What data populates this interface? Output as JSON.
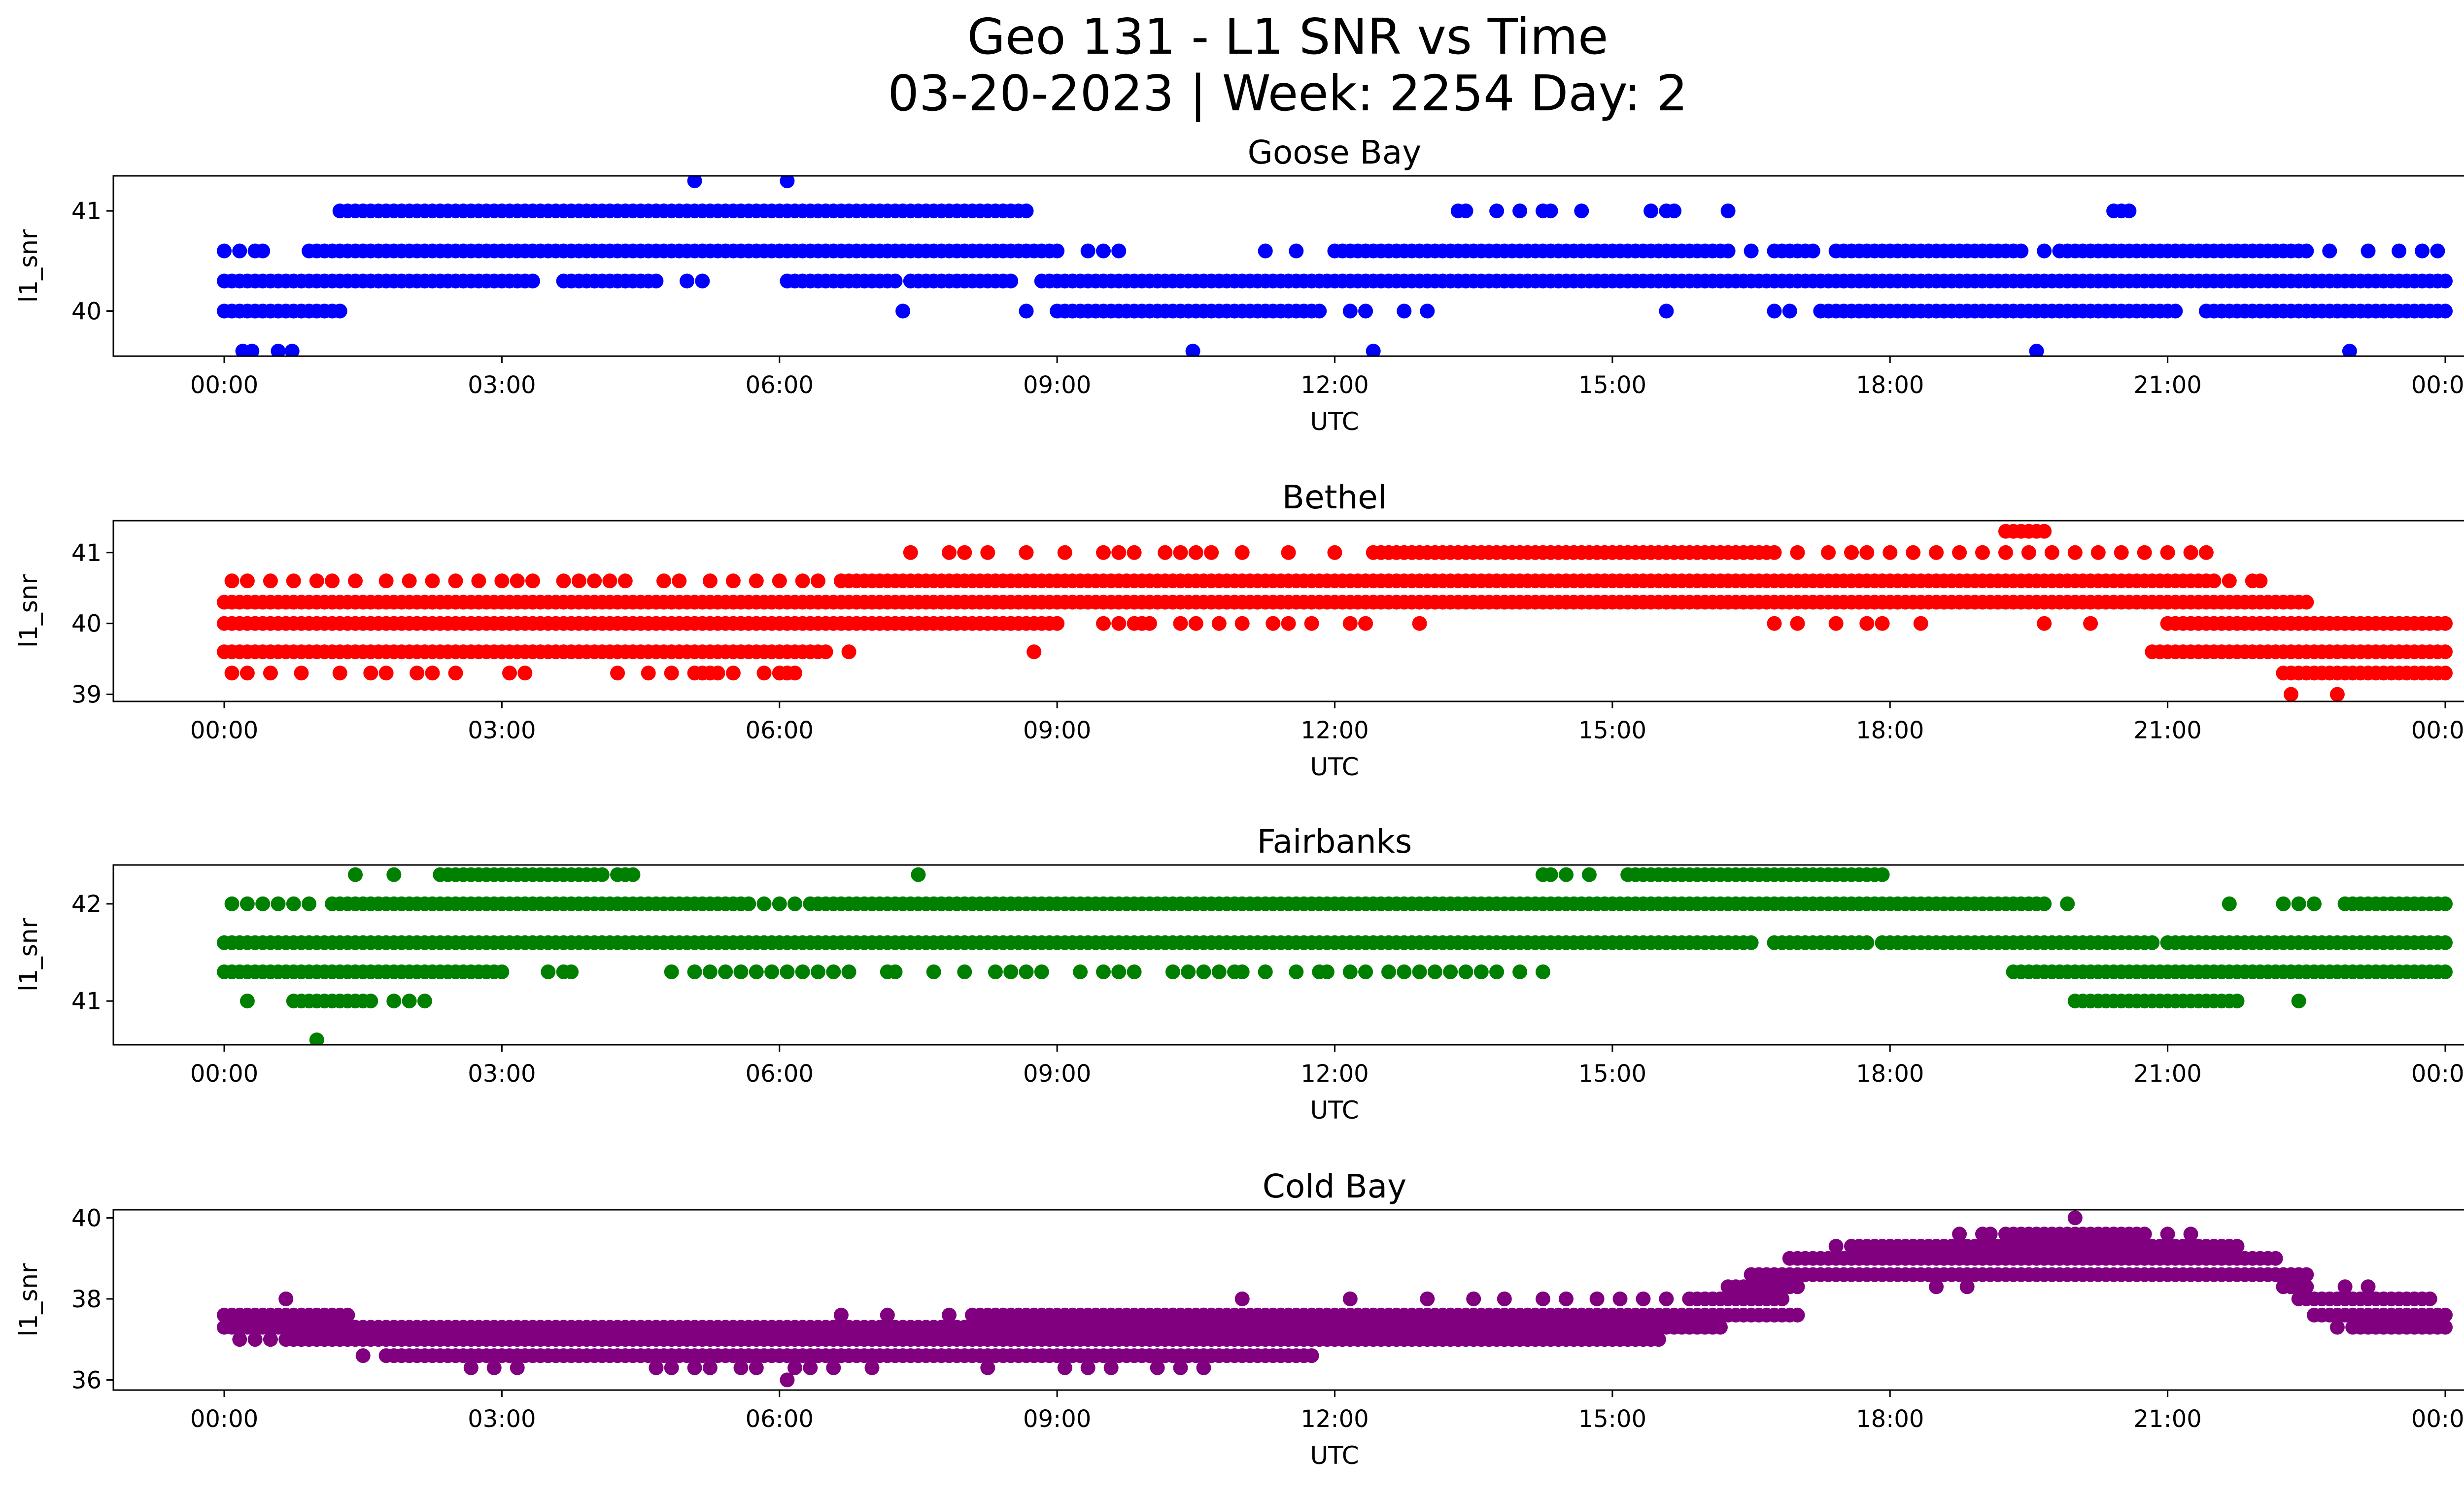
{
  "figure": {
    "title_line1": "Geo 131 - L1 SNR vs Time",
    "title_line2": "03-20-2023 | Week: 2254 Day: 2"
  },
  "chart_data": [
    {
      "type": "scatter",
      "title": "Goose Bay",
      "xlabel": "UTC",
      "ylabel": "l1_snr",
      "color": "#0000ff",
      "xlim": [
        "00:00",
        "24:00"
      ],
      "ylim": [
        39.55,
        41.35
      ],
      "xticks": [
        "00:00",
        "03:00",
        "06:00",
        "09:00",
        "12:00",
        "15:00",
        "18:00",
        "21:00",
        "00:00"
      ],
      "yticks": [
        40,
        41
      ],
      "levels": [
        {
          "y": 39.6,
          "x": [
            "00:12",
            "00:18",
            "00:35",
            "00:44",
            "10:28",
            "12:25",
            "19:35",
            "22:58"
          ]
        },
        {
          "y": 40.0,
          "ranges": [
            [
              "00:00",
              "01:15"
            ],
            [
              "09:00",
              "11:50"
            ],
            [
              "17:15",
              "21:05"
            ],
            [
              "21:25",
              "24:00"
            ]
          ],
          "x": [
            "07:20",
            "08:40",
            "12:10",
            "12:20",
            "12:45",
            "13:00",
            "15:35",
            "16:45",
            "16:55"
          ]
        },
        {
          "y": 40.3,
          "ranges": [
            [
              "00:00",
              "03:20"
            ],
            [
              "03:40",
              "04:40"
            ],
            [
              "06:05",
              "07:15"
            ],
            [
              "07:30",
              "08:30"
            ],
            [
              "08:50",
              "24:00"
            ]
          ],
          "x": [
            "05:00",
            "05:10",
            "07:25"
          ]
        },
        {
          "y": 40.6,
          "ranges": [
            [
              "00:55",
              "09:00"
            ],
            [
              "12:00",
              "16:15"
            ],
            [
              "16:45",
              "17:10"
            ],
            [
              "17:25",
              "19:25"
            ],
            [
              "19:50",
              "22:30"
            ]
          ],
          "x": [
            "00:00",
            "00:10",
            "00:20",
            "00:25",
            "09:20",
            "09:30",
            "09:40",
            "11:15",
            "11:35",
            "16:30",
            "19:40",
            "22:45",
            "23:10",
            "23:30",
            "23:45",
            "23:55"
          ]
        },
        {
          "y": 41.0,
          "ranges": [
            [
              "01:15",
              "08:40"
            ]
          ],
          "x": [
            "13:20",
            "13:25",
            "13:45",
            "14:00",
            "14:15",
            "14:20",
            "14:40",
            "15:25",
            "15:35",
            "15:40",
            "16:15",
            "20:25",
            "20:30",
            "20:35"
          ]
        },
        {
          "y": 41.3,
          "x": [
            "05:05",
            "06:05"
          ]
        }
      ]
    },
    {
      "type": "scatter",
      "title": "Bethel",
      "xlabel": "UTC",
      "ylabel": "l1_snr",
      "color": "#ff0000",
      "xlim": [
        "00:00",
        "24:00"
      ],
      "ylim": [
        38.9,
        41.45
      ],
      "xticks": [
        "00:00",
        "03:00",
        "06:00",
        "09:00",
        "12:00",
        "15:00",
        "18:00",
        "21:00",
        "00:00"
      ],
      "yticks": [
        39,
        40,
        41
      ],
      "levels": [
        {
          "y": 39.0,
          "x": [
            "22:20",
            "22:50"
          ]
        },
        {
          "y": 39.3,
          "ranges": [
            [
              "22:15",
              "24:00"
            ]
          ],
          "x": [
            "00:05",
            "00:15",
            "00:30",
            "00:50",
            "01:15",
            "01:35",
            "01:45",
            "02:05",
            "02:15",
            "02:30",
            "03:05",
            "03:15",
            "04:15",
            "04:35",
            "04:50",
            "05:05",
            "05:10",
            "05:15",
            "05:20",
            "05:30",
            "05:50",
            "06:00",
            "06:05",
            "06:10"
          ]
        },
        {
          "y": 39.6,
          "ranges": [
            [
              "00:00",
              "06:30"
            ],
            [
              "20:50",
              "24:00"
            ]
          ],
          "x": [
            "06:45",
            "08:45"
          ]
        },
        {
          "y": 40.0,
          "ranges": [
            [
              "00:00",
              "09:00"
            ],
            [
              "21:00",
              "24:00"
            ]
          ],
          "x": [
            "09:30",
            "09:40",
            "09:50",
            "09:55",
            "10:00",
            "10:20",
            "10:30",
            "10:45",
            "11:00",
            "11:20",
            "11:30",
            "11:45",
            "12:10",
            "12:20",
            "12:55",
            "16:45",
            "17:00",
            "17:25",
            "17:45",
            "17:55",
            "18:20",
            "19:40",
            "20:10"
          ]
        },
        {
          "y": 40.3,
          "ranges": [
            [
              "00:00",
              "22:30"
            ]
          ],
          "x": []
        },
        {
          "y": 40.6,
          "ranges": [
            [
              "06:40",
              "21:30"
            ]
          ],
          "x": [
            "00:05",
            "00:15",
            "00:30",
            "00:45",
            "01:00",
            "01:10",
            "01:25",
            "01:45",
            "02:00",
            "02:15",
            "02:30",
            "02:45",
            "03:00",
            "03:10",
            "03:20",
            "03:40",
            "03:50",
            "04:00",
            "04:10",
            "04:20",
            "04:45",
            "04:55",
            "05:15",
            "05:30",
            "05:45",
            "06:00",
            "06:15",
            "06:25",
            "21:40",
            "21:55",
            "22:00"
          ]
        },
        {
          "y": 41.0,
          "ranges": [
            [
              "12:25",
              "16:45"
            ]
          ],
          "x": [
            "07:25",
            "07:50",
            "08:00",
            "08:15",
            "08:40",
            "09:05",
            "09:30",
            "09:40",
            "09:50",
            "10:10",
            "10:20",
            "10:30",
            "10:40",
            "11:00",
            "11:30",
            "12:00",
            "17:00",
            "17:20",
            "17:35",
            "17:45",
            "18:00",
            "18:15",
            "18:30",
            "18:45",
            "19:00",
            "19:15",
            "19:30",
            "19:45",
            "20:00",
            "20:15",
            "20:30",
            "20:45",
            "21:00",
            "21:15",
            "21:25"
          ]
        },
        {
          "y": 41.3,
          "x": [
            "19:15",
            "19:20",
            "19:25",
            "19:30",
            "19:35",
            "19:40"
          ]
        }
      ]
    },
    {
      "type": "scatter",
      "title": "Fairbanks",
      "xlabel": "UTC",
      "ylabel": "l1_snr",
      "color": "#008000",
      "xlim": [
        "00:00",
        "24:00"
      ],
      "ylim": [
        40.55,
        42.4
      ],
      "xticks": [
        "00:00",
        "03:00",
        "06:00",
        "09:00",
        "12:00",
        "15:00",
        "18:00",
        "21:00",
        "00:00"
      ],
      "yticks": [
        41,
        42
      ],
      "levels": [
        {
          "y": 40.6,
          "x": [
            "01:00"
          ]
        },
        {
          "y": 41.0,
          "ranges": [
            [
              "20:00",
              "21:45"
            ]
          ],
          "x": [
            "00:15",
            "00:45",
            "00:50",
            "00:55",
            "01:00",
            "01:05",
            "01:10",
            "01:15",
            "01:20",
            "01:25",
            "01:30",
            "01:35",
            "01:50",
            "02:00",
            "02:10",
            "22:25"
          ]
        },
        {
          "y": 41.3,
          "ranges": [
            [
              "00:00",
              "03:00"
            ],
            [
              "19:20",
              "24:00"
            ]
          ],
          "x": [
            "03:30",
            "03:40",
            "03:45",
            "04:50",
            "05:05",
            "05:15",
            "05:25",
            "05:35",
            "05:45",
            "05:55",
            "06:05",
            "06:15",
            "06:25",
            "06:35",
            "06:45",
            "07:10",
            "07:15",
            "07:40",
            "08:00",
            "08:20",
            "08:30",
            "08:40",
            "08:50",
            "09:15",
            "09:30",
            "09:40",
            "09:50",
            "10:15",
            "10:25",
            "10:35",
            "10:45",
            "10:55",
            "11:00",
            "11:15",
            "11:35",
            "11:50",
            "11:55",
            "12:10",
            "12:20",
            "12:35",
            "12:45",
            "12:55",
            "13:05",
            "13:15",
            "13:25",
            "13:35",
            "13:45",
            "14:00",
            "14:15"
          ]
        },
        {
          "y": 41.6,
          "ranges": [
            [
              "00:00",
              "16:30"
            ],
            [
              "16:45",
              "17:45"
            ],
            [
              "17:55",
              "20:50"
            ],
            [
              "21:00",
              "24:00"
            ]
          ],
          "x": []
        },
        {
          "y": 42.0,
          "ranges": [
            [
              "01:10",
              "05:40"
            ],
            [
              "06:25",
              "19:40"
            ],
            [
              "22:55",
              "23:35"
            ],
            [
              "23:45",
              "24:00"
            ]
          ],
          "x": [
            "00:05",
            "00:15",
            "00:25",
            "00:35",
            "00:45",
            "00:55",
            "05:50",
            "06:00",
            "06:10",
            "06:20",
            "19:55",
            "21:40",
            "22:15",
            "22:25",
            "22:35",
            "23:40"
          ]
        },
        {
          "y": 42.3,
          "ranges": [
            [
              "02:20",
              "04:05"
            ],
            [
              "15:10",
              "17:55"
            ]
          ],
          "x": [
            "01:25",
            "01:50",
            "04:15",
            "04:20",
            "04:25",
            "07:30",
            "14:15",
            "14:20",
            "14:30",
            "14:45"
          ]
        }
      ]
    },
    {
      "type": "scatter",
      "title": "Cold Bay",
      "xlabel": "UTC",
      "ylabel": "l1_snr",
      "color": "#800080",
      "xlim": [
        "00:00",
        "24:00"
      ],
      "ylim": [
        35.75,
        40.2
      ],
      "xticks": [
        "00:00",
        "03:00",
        "06:00",
        "09:00",
        "12:00",
        "15:00",
        "18:00",
        "21:00",
        "00:00"
      ],
      "yticks": [
        36,
        38,
        40
      ],
      "levels": [
        {
          "y": 36.0,
          "x": [
            "06:05"
          ]
        },
        {
          "y": 36.3,
          "x": [
            "02:40",
            "02:55",
            "03:10",
            "04:40",
            "04:50",
            "05:05",
            "05:15",
            "05:35",
            "05:45",
            "06:10",
            "06:20",
            "06:35",
            "07:00",
            "08:15",
            "09:05",
            "09:20",
            "09:35",
            "10:05",
            "10:20",
            "10:35"
          ]
        },
        {
          "y": 36.6,
          "ranges": [
            [
              "01:45",
              "11:45"
            ]
          ],
          "x": [
            "01:30"
          ]
        },
        {
          "y": 37.0,
          "ranges": [
            [
              "00:40",
              "15:30"
            ]
          ],
          "x": [
            "00:10",
            "00:20",
            "00:30",
            "12:40",
            "12:55",
            "13:20",
            "13:40",
            "14:05"
          ]
        },
        {
          "y": 37.3,
          "ranges": [
            [
              "00:00",
              "16:10"
            ],
            [
              "23:00",
              "24:00"
            ]
          ],
          "x": [
            "22:50"
          ]
        },
        {
          "y": 37.6,
          "ranges": [
            [
              "00:00",
              "01:20"
            ],
            [
              "08:05",
              "17:00"
            ],
            [
              "22:35",
              "24:00"
            ]
          ],
          "x": [
            "06:40",
            "07:10",
            "07:50",
            "10:15",
            "10:35"
          ]
        },
        {
          "y": 38.0,
          "ranges": [
            [
              "15:50",
              "16:50"
            ],
            [
              "22:25",
              "23:50"
            ]
          ],
          "x": [
            "00:40",
            "11:00",
            "12:10",
            "13:00",
            "13:30",
            "13:50",
            "14:15",
            "14:30",
            "14:50",
            "15:05",
            "15:20",
            "15:35"
          ]
        },
        {
          "y": 38.3,
          "ranges": [
            [
              "16:15",
              "17:00"
            ],
            [
              "22:15",
              "22:30"
            ]
          ],
          "x": [
            "18:30",
            "18:50",
            "22:55",
            "23:10"
          ]
        },
        {
          "y": 38.6,
          "ranges": [
            [
              "16:30",
              "22:30"
            ]
          ],
          "x": []
        },
        {
          "y": 39.0,
          "ranges": [
            [
              "16:55",
              "22:10"
            ]
          ],
          "x": []
        },
        {
          "y": 39.3,
          "ranges": [
            [
              "17:40",
              "21:45"
            ]
          ],
          "x": [
            "17:25",
            "17:35"
          ]
        },
        {
          "y": 39.6,
          "ranges": [
            [
              "19:15",
              "20:45"
            ]
          ],
          "x": [
            "18:45",
            "19:00",
            "19:05",
            "21:00",
            "21:15"
          ]
        },
        {
          "y": 40.0,
          "x": [
            "20:00"
          ]
        }
      ]
    }
  ]
}
